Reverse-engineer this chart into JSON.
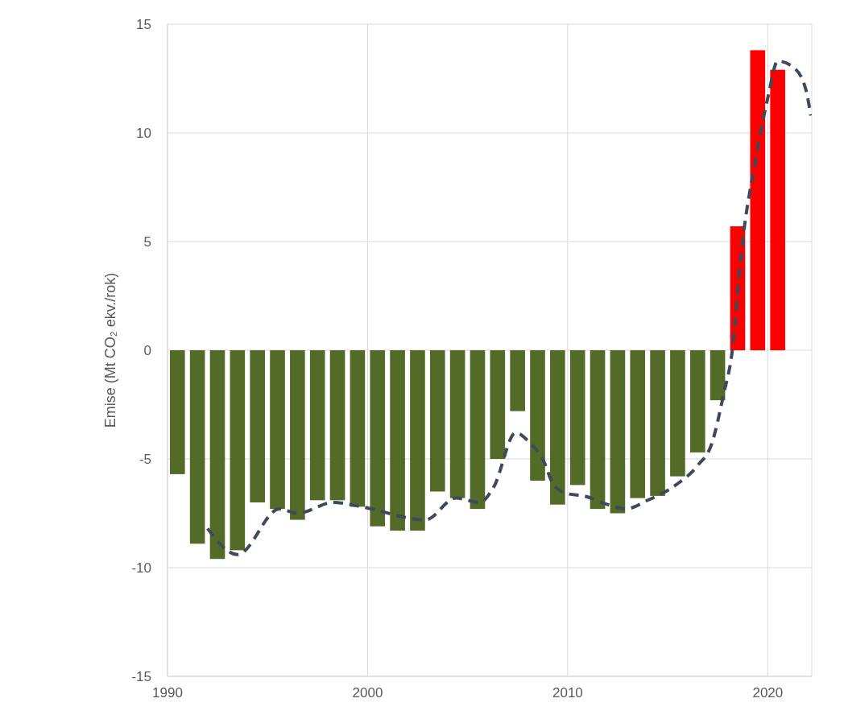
{
  "chart_data": {
    "type": "bar",
    "ylabel": "Emise (Mt CO₂ ekv./rok)",
    "xlim": [
      1990,
      2022.2
    ],
    "xticks": [
      1990,
      2000,
      2010,
      2020
    ],
    "ylim": [
      -15,
      15
    ],
    "yticks": [
      -15,
      -10,
      -5,
      0,
      5,
      10,
      15
    ],
    "grid": true,
    "legend": false,
    "series": [
      {
        "x": [
          1990.5,
          1991.5,
          1992.5,
          1993.5,
          1994.5,
          1995.5,
          1996.5,
          1997.5,
          1998.5,
          1999.5,
          2000.5,
          2001.5,
          2002.5,
          2003.5,
          2004.5,
          2005.5,
          2006.5,
          2007.5,
          2008.5,
          2009.5,
          2010.5,
          2011.5,
          2012.5,
          2013.5,
          2014.5,
          2015.5,
          2016.5,
          2017.5,
          2018.5,
          2019.5,
          2020.5
        ],
        "values": [
          -5.7,
          -8.9,
          -9.6,
          -9.2,
          -7.0,
          -7.3,
          -7.8,
          -6.9,
          -6.9,
          -7.2,
          -8.1,
          -8.3,
          -8.3,
          -6.5,
          -6.8,
          -7.3,
          -5.0,
          -2.8,
          -6.0,
          -7.1,
          -6.2,
          -7.3,
          -7.5,
          -6.8,
          -6.7,
          -5.8,
          -4.7,
          -2.3,
          5.7,
          13.8,
          12.9
        ],
        "colors": [
          "#546b28",
          "#546b28",
          "#546b28",
          "#546b28",
          "#546b28",
          "#546b28",
          "#546b28",
          "#546b28",
          "#546b28",
          "#546b28",
          "#546b28",
          "#546b28",
          "#546b28",
          "#546b28",
          "#546b28",
          "#546b28",
          "#546b28",
          "#546b28",
          "#546b28",
          "#546b28",
          "#546b28",
          "#546b28",
          "#546b28",
          "#546b28",
          "#546b28",
          "#546b28",
          "#546b28",
          "#546b28",
          "#ff0000",
          "#ff0000",
          "#ff0000"
        ]
      },
      {
        "type": "line",
        "color": "#3e4a5c",
        "line_style": "dashed",
        "marker": "none",
        "x": [
          1992.0,
          1993.5,
          1995.6,
          1996.5,
          1998.3,
          1999.7,
          2002.9,
          2004.4,
          2005.6,
          2006.3,
          2007.4,
          2008.05,
          2008.8,
          2009.3,
          2010.0,
          2010.8,
          2012.0,
          2012.9,
          2014.0,
          2015.4,
          2016.5,
          2017.2,
          2017.8,
          2018.2,
          2018.7,
          2019.4,
          2020.0,
          2020.5,
          2021.3,
          2021.9,
          2022.15
        ],
        "values": [
          -8.2,
          -9.4,
          -7.3,
          -7.5,
          -7.0,
          -7.2,
          -7.8,
          -6.8,
          -7.0,
          -6.3,
          -3.8,
          -4.2,
          -5.1,
          -6.2,
          -6.6,
          -6.7,
          -7.1,
          -7.3,
          -6.9,
          -6.2,
          -5.3,
          -4.3,
          -2.0,
          -0.2,
          4.7,
          8.8,
          11.6,
          13.3,
          13.0,
          12.0,
          10.8
        ]
      }
    ]
  }
}
